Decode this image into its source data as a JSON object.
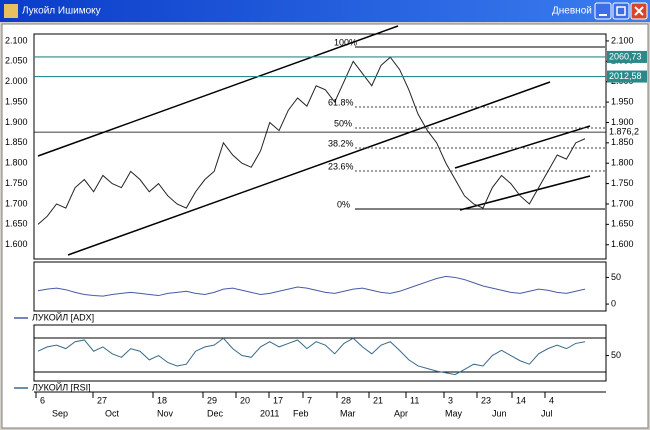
{
  "window": {
    "title": "Лукойл Ишимоку",
    "timeframe": "Дневной"
  },
  "chart_data": [
    {
      "type": "line",
      "color": "#222222",
      "values": [
        1650,
        1670,
        1700,
        1690,
        1740,
        1760,
        1730,
        1770,
        1750,
        1740,
        1780,
        1760,
        1730,
        1750,
        1720,
        1700,
        1690,
        1730,
        1760,
        1780,
        1850,
        1820,
        1800,
        1790,
        1830,
        1900,
        1880,
        1930,
        1960,
        1940,
        1990,
        1980,
        1950,
        2000,
        2050,
        2020,
        1990,
        2040,
        2060,
        2030,
        1980,
        1920,
        1880,
        1850,
        1800,
        1760,
        1720,
        1700,
        1690,
        1740,
        1770,
        1750,
        1720,
        1700,
        1740,
        1780,
        1820,
        1810,
        1850,
        1860
      ],
      "ylim": [
        1565,
        2117
      ],
      "yticks": [
        {
          "value": 1600,
          "label": "1.600"
        },
        {
          "value": 1650,
          "label": "1.650"
        },
        {
          "value": 1700,
          "label": "1.700"
        },
        {
          "value": 1750,
          "label": "1.750"
        },
        {
          "value": 1800,
          "label": "1.800"
        },
        {
          "value": 1850,
          "label": "1.850"
        },
        {
          "value": 1900,
          "label": "1.900"
        },
        {
          "value": 1950,
          "label": "1.950"
        },
        {
          "value": 2000,
          "label": "2.000"
        },
        {
          "value": 2050,
          "label": "2.050"
        },
        {
          "value": 2100,
          "label": "2.100"
        }
      ],
      "price_labels": [
        {
          "value": 2060.73,
          "label": "2060,73"
        },
        {
          "value": 2012.58,
          "label": "2012,58"
        },
        {
          "value": 1876.2,
          "label": "1.876,2"
        }
      ],
      "annotations": [
        "100%",
        "61.8%",
        "50%",
        "38.2%",
        "23.6%",
        "0%"
      ]
    },
    {
      "type": "line",
      "legend": "ЛУКОЙЛ [ADX]",
      "color": "#4a5aa8",
      "values": [
        25,
        28,
        30,
        27,
        22,
        18,
        16,
        15,
        18,
        20,
        22,
        20,
        18,
        16,
        20,
        22,
        24,
        20,
        18,
        22,
        28,
        30,
        26,
        22,
        18,
        20,
        24,
        28,
        32,
        30,
        26,
        22,
        20,
        24,
        28,
        30,
        26,
        22,
        20,
        24,
        30,
        36,
        42,
        48,
        52,
        50,
        46,
        40,
        34,
        30,
        26,
        22,
        20,
        24,
        28,
        26,
        22,
        20,
        24,
        28
      ],
      "ylim": [
        -13,
        79
      ],
      "yticks": [
        0,
        50
      ]
    },
    {
      "type": "line",
      "legend": "ЛУКОЙЛ [RSI]",
      "color": "#3a6a8a",
      "values": [
        55,
        60,
        62,
        58,
        66,
        68,
        55,
        60,
        52,
        48,
        58,
        55,
        45,
        50,
        42,
        38,
        40,
        55,
        60,
        62,
        70,
        58,
        50,
        48,
        60,
        66,
        60,
        64,
        68,
        58,
        66,
        62,
        52,
        64,
        70,
        60,
        52,
        62,
        66,
        56,
        45,
        38,
        35,
        32,
        30,
        28,
        34,
        40,
        38,
        50,
        56,
        50,
        44,
        40,
        52,
        58,
        62,
        58,
        64,
        66
      ],
      "ylim": [
        20.6,
        85.3
      ],
      "yticks": [
        50
      ]
    }
  ],
  "x_axis": {
    "days": [
      "6",
      "27",
      "18",
      "29",
      "20",
      "17",
      "7",
      "28",
      "21",
      "11",
      "3",
      "23",
      "14",
      "4"
    ],
    "months": [
      "Sep",
      "Oct",
      "Nov",
      "Dec",
      "2011",
      "Feb",
      "Mar",
      "Apr",
      "May",
      "Jun",
      "Jul"
    ]
  }
}
